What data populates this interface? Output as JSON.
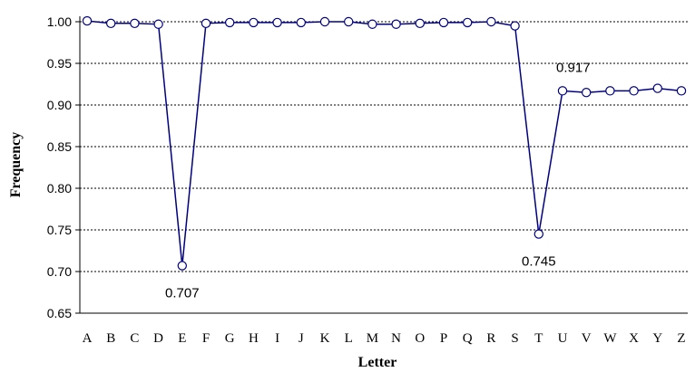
{
  "chart_data": {
    "type": "line",
    "xlabel": "Letter",
    "ylabel": "Frequency",
    "ylim": [
      0.65,
      1.0
    ],
    "yticks": [
      "0.65",
      "0.70",
      "0.75",
      "0.80",
      "0.85",
      "0.90",
      "0.95",
      "1.00"
    ],
    "grid": "horizontal-dotted",
    "categories": [
      "A",
      "B",
      "C",
      "D",
      "E",
      "F",
      "G",
      "H",
      "I",
      "J",
      "K",
      "L",
      "M",
      "N",
      "O",
      "P",
      "Q",
      "R",
      "S",
      "T",
      "U",
      "V",
      "W",
      "X",
      "Y",
      "Z"
    ],
    "series": [
      {
        "values": [
          1.001,
          0.998,
          0.998,
          0.997,
          0.707,
          0.998,
          0.999,
          0.999,
          0.999,
          0.999,
          1.0,
          1.0,
          0.997,
          0.997,
          0.998,
          0.999,
          0.999,
          1.0,
          0.995,
          0.745,
          0.917,
          0.915,
          0.917,
          0.917,
          0.92,
          0.917
        ]
      }
    ],
    "annotations": [
      {
        "category": "E",
        "text": "0.707",
        "position": "below"
      },
      {
        "category": "T",
        "text": "0.745",
        "position": "below"
      },
      {
        "category": "U",
        "text": "0.917",
        "position": "above"
      }
    ],
    "colors": {
      "series": "#000080",
      "marker_fill": "#ffffff"
    }
  }
}
